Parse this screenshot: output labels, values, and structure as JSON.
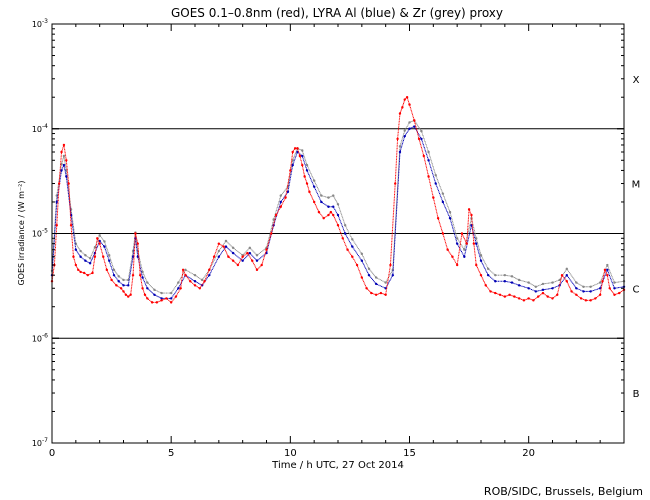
{
  "chart_data": {
    "type": "scatter",
    "title": "GOES 0.1–0.8nm (red), LYRA Al (blue) & Zr (grey) proxy",
    "xlabel": "Time / h UTC, 27 Oct 2014",
    "ylabel": "GOES irradiance / (W m⁻²)",
    "xlim": [
      0,
      24
    ],
    "ylim": [
      1e-07,
      0.001
    ],
    "yscale": "log",
    "x_ticks": [
      0,
      5,
      10,
      15,
      20
    ],
    "x_tick_labels": [
      "0",
      "5",
      "10",
      "15",
      "20"
    ],
    "y_ticks": [
      1e-07,
      1e-06,
      1e-05,
      0.0001,
      0.001
    ],
    "y_tick_labels": [
      {
        "base": "10",
        "exp": "-7"
      },
      {
        "base": "10",
        "exp": "-6"
      },
      {
        "base": "10",
        "exp": "-5"
      },
      {
        "base": "10",
        "exp": "-4"
      },
      {
        "base": "10",
        "exp": "-3"
      }
    ],
    "flare_class_lines": [
      1e-06,
      1e-05,
      0.0001
    ],
    "flare_classes": [
      {
        "label": "X",
        "y": 0.0003
      },
      {
        "label": "M",
        "y": 3e-05
      },
      {
        "label": "C",
        "y": 3e-06
      },
      {
        "label": "B",
        "y": 3e-07
      }
    ],
    "credit": "ROB/SIDC, Brussels, Belgium",
    "series": [
      {
        "name": "GOES 0.1–0.8nm",
        "color": "#ff0000",
        "x": [
          0.0,
          0.1,
          0.2,
          0.3,
          0.4,
          0.5,
          0.6,
          0.7,
          0.8,
          0.9,
          1.0,
          1.1,
          1.2,
          1.35,
          1.5,
          1.7,
          1.8,
          1.9,
          2.0,
          2.15,
          2.3,
          2.5,
          2.7,
          2.9,
          3.0,
          3.1,
          3.2,
          3.3,
          3.4,
          3.5,
          3.6,
          3.7,
          3.8,
          3.9,
          4.0,
          4.2,
          4.4,
          4.6,
          4.8,
          5.0,
          5.2,
          5.4,
          5.5,
          5.6,
          5.8,
          6.0,
          6.2,
          6.4,
          6.6,
          6.8,
          7.0,
          7.2,
          7.4,
          7.6,
          7.8,
          8.0,
          8.2,
          8.4,
          8.6,
          8.8,
          9.0,
          9.2,
          9.4,
          9.6,
          9.8,
          10.0,
          10.1,
          10.2,
          10.3,
          10.4,
          10.5,
          10.6,
          10.7,
          10.8,
          11.0,
          11.2,
          11.4,
          11.6,
          11.7,
          11.8,
          12.0,
          12.2,
          12.4,
          12.6,
          12.8,
          13.0,
          13.2,
          13.4,
          13.6,
          13.8,
          14.0,
          14.2,
          14.4,
          14.5,
          14.6,
          14.7,
          14.8,
          14.9,
          15.0,
          15.2,
          15.4,
          15.6,
          15.8,
          16.0,
          16.2,
          16.4,
          16.6,
          16.8,
          17.0,
          17.2,
          17.4,
          17.5,
          17.6,
          17.7,
          17.8,
          18.0,
          18.2,
          18.4,
          18.6,
          18.8,
          19.0,
          19.2,
          19.4,
          19.6,
          19.8,
          20.0,
          20.2,
          20.4,
          20.6,
          20.8,
          21.0,
          21.2,
          21.4,
          21.6,
          21.8,
          22.0,
          22.2,
          22.4,
          22.6,
          22.8,
          23.0,
          23.1,
          23.2,
          23.3,
          23.4,
          23.6,
          23.8,
          24.0
        ],
        "y": [
          3.5e-06,
          5e-06,
          1.2e-05,
          3e-05,
          6e-05,
          7e-05,
          5e-05,
          3e-05,
          1.2e-05,
          6e-06,
          5e-06,
          4.5e-06,
          4.3e-06,
          4.2e-06,
          4e-06,
          4.2e-06,
          6e-06,
          9e-06,
          8e-06,
          6e-06,
          4.5e-06,
          3.6e-06,
          3.2e-06,
          3e-06,
          2.8e-06,
          2.6e-06,
          2.5e-06,
          2.6e-06,
          4e-06,
          1e-05,
          8e-06,
          4e-06,
          3e-06,
          2.6e-06,
          2.4e-06,
          2.2e-06,
          2.2e-06,
          2.3e-06,
          2.4e-06,
          2.2e-06,
          2.5e-06,
          3e-06,
          4.5e-06,
          4e-06,
          3.5e-06,
          3.2e-06,
          3e-06,
          3.5e-06,
          4.5e-06,
          6e-06,
          8e-06,
          7.5e-06,
          6e-06,
          5.5e-06,
          5e-06,
          6e-06,
          6.5e-06,
          5.5e-06,
          4.5e-06,
          5e-06,
          7e-06,
          1e-05,
          1.5e-05,
          1.8e-05,
          2.2e-05,
          4e-05,
          6e-05,
          6.5e-05,
          6.5e-05,
          5.5e-05,
          4.5e-05,
          3.5e-05,
          3e-05,
          2.5e-05,
          2e-05,
          1.6e-05,
          1.4e-05,
          1.5e-05,
          1.6e-05,
          1.5e-05,
          1.2e-05,
          9e-06,
          7e-06,
          6e-06,
          5e-06,
          3.8e-06,
          3e-06,
          2.7e-06,
          2.6e-06,
          2.7e-06,
          2.6e-06,
          5e-06,
          3e-05,
          8e-05,
          0.00014,
          0.00016,
          0.00019,
          0.0002,
          0.00017,
          0.00012,
          8e-05,
          5.5e-05,
          3.5e-05,
          2.2e-05,
          1.4e-05,
          1e-05,
          7e-06,
          6e-06,
          5e-06,
          1e-05,
          8e-06,
          1.7e-05,
          1.5e-05,
          8e-06,
          5e-06,
          4e-06,
          3.2e-06,
          2.8e-06,
          2.7e-06,
          2.6e-06,
          2.5e-06,
          2.6e-06,
          2.5e-06,
          2.4e-06,
          2.3e-06,
          2.4e-06,
          2.3e-06,
          2.5e-06,
          2.7e-06,
          2.5e-06,
          2.4e-06,
          2.6e-06,
          4e-06,
          3.5e-06,
          2.8e-06,
          2.6e-06,
          2.4e-06,
          2.3e-06,
          2.3e-06,
          2.4e-06,
          2.6e-06,
          3.5e-06,
          4.5e-06,
          4e-06,
          3e-06,
          2.6e-06,
          2.7e-06,
          2.9e-06
        ]
      },
      {
        "name": "LYRA Al",
        "color": "#0000b4",
        "x": [
          0.0,
          0.2,
          0.4,
          0.5,
          0.6,
          0.8,
          1.0,
          1.2,
          1.4,
          1.6,
          1.8,
          2.0,
          2.2,
          2.4,
          2.6,
          2.8,
          3.0,
          3.2,
          3.4,
          3.5,
          3.6,
          3.8,
          4.0,
          4.3,
          4.6,
          5.0,
          5.3,
          5.6,
          6.0,
          6.3,
          6.6,
          7.0,
          7.3,
          7.6,
          8.0,
          8.3,
          8.6,
          9.0,
          9.3,
          9.6,
          9.9,
          10.1,
          10.3,
          10.5,
          10.7,
          11.0,
          11.3,
          11.6,
          11.8,
          12.0,
          12.3,
          12.6,
          13.0,
          13.3,
          13.6,
          14.0,
          14.3,
          14.6,
          14.8,
          15.0,
          15.2,
          15.5,
          15.8,
          16.1,
          16.4,
          16.7,
          17.0,
          17.3,
          17.6,
          17.8,
          18.0,
          18.3,
          18.6,
          19.0,
          19.3,
          19.6,
          20.0,
          20.3,
          20.6,
          21.0,
          21.3,
          21.6,
          22.0,
          22.3,
          22.6,
          23.0,
          23.3,
          23.6,
          24.0
        ],
        "y": [
          4e-06,
          2e-05,
          4e-05,
          4.5e-05,
          3.5e-05,
          1.5e-05,
          7e-06,
          6e-06,
          5.5e-06,
          5.2e-06,
          6.5e-06,
          8.5e-06,
          7.5e-06,
          5.5e-06,
          4e-06,
          3.5e-06,
          3.2e-06,
          3.2e-06,
          6e-06,
          9e-06,
          6e-06,
          3.8e-06,
          3e-06,
          2.6e-06,
          2.4e-06,
          2.4e-06,
          3e-06,
          4e-06,
          3.5e-06,
          3.2e-06,
          4e-06,
          6e-06,
          7.5e-06,
          6.5e-06,
          5.5e-06,
          6.5e-06,
          5.5e-06,
          6.5e-06,
          1.2e-05,
          2e-05,
          2.5e-05,
          4.5e-05,
          6e-05,
          5.5e-05,
          4e-05,
          2.8e-05,
          2e-05,
          1.8e-05,
          1.8e-05,
          1.5e-05,
          1e-05,
          7.5e-06,
          5.5e-06,
          4e-06,
          3.3e-06,
          3e-06,
          4e-06,
          6e-05,
          8.5e-05,
          0.0001,
          0.000105,
          8e-05,
          5e-05,
          3e-05,
          2e-05,
          1.4e-05,
          8e-06,
          6e-06,
          1.2e-05,
          8e-06,
          5.5e-06,
          4e-06,
          3.5e-06,
          3.5e-06,
          3.4e-06,
          3.2e-06,
          3e-06,
          2.8e-06,
          2.9e-06,
          3e-06,
          3.2e-06,
          4e-06,
          3e-06,
          2.8e-06,
          2.8e-06,
          3e-06,
          4.5e-06,
          3e-06,
          3.1e-06
        ]
      },
      {
        "name": "LYRA Zr",
        "color": "#888888",
        "x": [
          0.0,
          0.2,
          0.4,
          0.5,
          0.6,
          0.8,
          1.0,
          1.2,
          1.4,
          1.6,
          1.8,
          2.0,
          2.2,
          2.4,
          2.6,
          2.8,
          3.0,
          3.2,
          3.4,
          3.5,
          3.6,
          3.8,
          4.0,
          4.3,
          4.6,
          5.0,
          5.3,
          5.6,
          6.0,
          6.3,
          6.6,
          7.0,
          7.3,
          7.6,
          8.0,
          8.3,
          8.6,
          9.0,
          9.3,
          9.6,
          9.9,
          10.1,
          10.3,
          10.5,
          10.7,
          11.0,
          11.3,
          11.6,
          11.8,
          12.0,
          12.3,
          12.6,
          13.0,
          13.3,
          13.6,
          14.0,
          14.3,
          14.6,
          14.8,
          15.0,
          15.2,
          15.5,
          15.8,
          16.1,
          16.4,
          16.7,
          17.0,
          17.3,
          17.6,
          17.8,
          18.0,
          18.3,
          18.6,
          19.0,
          19.3,
          19.6,
          20.0,
          20.3,
          20.6,
          21.0,
          21.3,
          21.6,
          22.0,
          22.3,
          22.6,
          23.0,
          23.3,
          23.6,
          24.0
        ],
        "y": [
          4.4e-06,
          2.3e-05,
          4.6e-05,
          5.5e-05,
          4e-05,
          1.7e-05,
          8e-06,
          6.8e-06,
          6.2e-06,
          5.8e-06,
          7.4e-06,
          9.6e-06,
          8.4e-06,
          6.2e-06,
          4.5e-06,
          3.9e-06,
          3.6e-06,
          3.6e-06,
          6.8e-06,
          1.02e-05,
          6.8e-06,
          4.3e-06,
          3.4e-06,
          2.9e-06,
          2.7e-06,
          2.7e-06,
          3.4e-06,
          4.5e-06,
          4e-06,
          3.6e-06,
          4.5e-06,
          6.8e-06,
          8.5e-06,
          7.3e-06,
          6.2e-06,
          7.3e-06,
          6.2e-06,
          7.3e-06,
          1.36e-05,
          2.3e-05,
          2.8e-05,
          5e-05,
          6.5e-05,
          6.2e-05,
          4.5e-05,
          3.2e-05,
          2.3e-05,
          2.2e-05,
          2.3e-05,
          1.9e-05,
          1.2e-05,
          8.8e-06,
          6.4e-06,
          4.6e-06,
          3.8e-06,
          3.4e-06,
          4.5e-06,
          6.8e-05,
          9.6e-05,
          0.000115,
          0.00012,
          9.5e-05,
          6e-05,
          3.6e-05,
          2.4e-05,
          1.6e-05,
          9e-06,
          7e-06,
          1.4e-05,
          9e-06,
          6.2e-06,
          4.6e-06,
          4e-06,
          4e-06,
          3.9e-06,
          3.6e-06,
          3.4e-06,
          3.1e-06,
          3.3e-06,
          3.4e-06,
          3.6e-06,
          4.6e-06,
          3.4e-06,
          3.1e-06,
          3.1e-06,
          3.4e-06,
          5e-06,
          3.4e-06,
          3.5e-06
        ]
      }
    ]
  }
}
